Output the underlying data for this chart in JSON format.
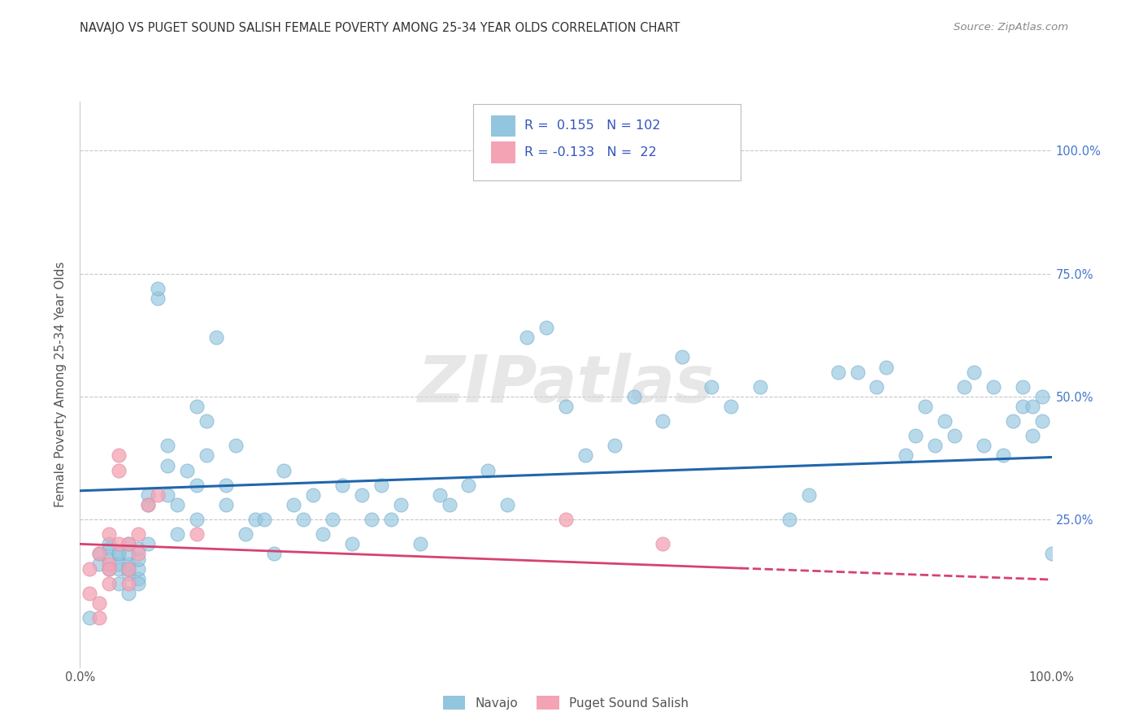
{
  "title": "NAVAJO VS PUGET SOUND SALISH FEMALE POVERTY AMONG 25-34 YEAR OLDS CORRELATION CHART",
  "source": "Source: ZipAtlas.com",
  "ylabel": "Female Poverty Among 25-34 Year Olds",
  "xlim": [
    0.0,
    1.0
  ],
  "ylim": [
    -0.05,
    1.1
  ],
  "yticks": [
    0.0,
    0.25,
    0.5,
    0.75,
    1.0
  ],
  "ytick_labels": [
    "",
    "25.0%",
    "50.0%",
    "75.0%",
    "100.0%"
  ],
  "navajo_R": 0.155,
  "navajo_N": 102,
  "salish_R": -0.133,
  "salish_N": 22,
  "navajo_color": "#92c5de",
  "salish_color": "#f4a3b5",
  "navajo_line_color": "#2166ac",
  "salish_line_color": "#d6436e",
  "background_color": "#ffffff",
  "grid_color": "#c8c8c8",
  "legend_text_color": "#3355bb",
  "navajo_x": [
    0.01,
    0.02,
    0.02,
    0.03,
    0.03,
    0.03,
    0.03,
    0.04,
    0.04,
    0.04,
    0.04,
    0.04,
    0.05,
    0.05,
    0.05,
    0.05,
    0.05,
    0.05,
    0.06,
    0.06,
    0.06,
    0.06,
    0.06,
    0.07,
    0.07,
    0.07,
    0.08,
    0.08,
    0.09,
    0.09,
    0.09,
    0.1,
    0.1,
    0.11,
    0.12,
    0.12,
    0.13,
    0.14,
    0.15,
    0.15,
    0.16,
    0.17,
    0.18,
    0.19,
    0.2,
    0.21,
    0.22,
    0.23,
    0.24,
    0.25,
    0.26,
    0.27,
    0.28,
    0.29,
    0.3,
    0.31,
    0.32,
    0.33,
    0.35,
    0.37,
    0.38,
    0.4,
    0.42,
    0.44,
    0.46,
    0.48,
    0.5,
    0.52,
    0.55,
    0.57,
    0.6,
    0.62,
    0.65,
    0.67,
    0.7,
    0.73,
    0.75,
    0.78,
    0.8,
    0.82,
    0.83,
    0.85,
    0.86,
    0.87,
    0.88,
    0.89,
    0.9,
    0.91,
    0.92,
    0.93,
    0.94,
    0.95,
    0.96,
    0.97,
    0.97,
    0.98,
    0.98,
    0.99,
    0.99,
    1.0,
    0.12,
    0.13
  ],
  "navajo_y": [
    0.05,
    0.18,
    0.16,
    0.15,
    0.19,
    0.2,
    0.17,
    0.12,
    0.15,
    0.18,
    0.16,
    0.18,
    0.1,
    0.14,
    0.16,
    0.18,
    0.2,
    0.15,
    0.13,
    0.15,
    0.17,
    0.12,
    0.19,
    0.3,
    0.28,
    0.2,
    0.7,
    0.72,
    0.36,
    0.4,
    0.3,
    0.22,
    0.28,
    0.35,
    0.32,
    0.25,
    0.38,
    0.62,
    0.28,
    0.32,
    0.4,
    0.22,
    0.25,
    0.25,
    0.18,
    0.35,
    0.28,
    0.25,
    0.3,
    0.22,
    0.25,
    0.32,
    0.2,
    0.3,
    0.25,
    0.32,
    0.25,
    0.28,
    0.2,
    0.3,
    0.28,
    0.32,
    0.35,
    0.28,
    0.62,
    0.64,
    0.48,
    0.38,
    0.4,
    0.5,
    0.45,
    0.58,
    0.52,
    0.48,
    0.52,
    0.25,
    0.3,
    0.55,
    0.55,
    0.52,
    0.56,
    0.38,
    0.42,
    0.48,
    0.4,
    0.45,
    0.42,
    0.52,
    0.55,
    0.4,
    0.52,
    0.38,
    0.45,
    0.48,
    0.52,
    0.42,
    0.48,
    0.5,
    0.45,
    0.18,
    0.48,
    0.45
  ],
  "salish_x": [
    0.01,
    0.01,
    0.02,
    0.02,
    0.02,
    0.03,
    0.03,
    0.03,
    0.03,
    0.04,
    0.04,
    0.04,
    0.05,
    0.05,
    0.05,
    0.06,
    0.06,
    0.07,
    0.08,
    0.12,
    0.5,
    0.6
  ],
  "salish_y": [
    0.1,
    0.15,
    0.18,
    0.05,
    0.08,
    0.22,
    0.16,
    0.12,
    0.15,
    0.2,
    0.38,
    0.35,
    0.2,
    0.15,
    0.12,
    0.18,
    0.22,
    0.28,
    0.3,
    0.22,
    0.25,
    0.2
  ]
}
